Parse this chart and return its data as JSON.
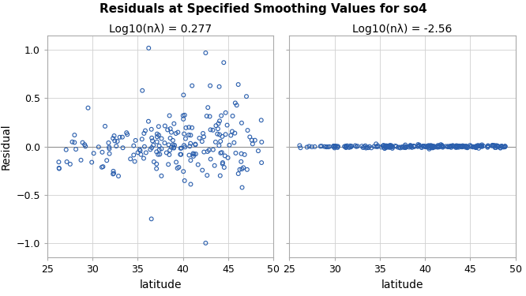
{
  "title": "Residuals at Specified Smoothing Values for so4",
  "subplot1_title": "Log10(nλ) = 0.277",
  "subplot2_title": "Log10(nλ) = -2.56",
  "xlabel": "latitude",
  "ylabel": "Residual",
  "xlim": [
    25,
    50
  ],
  "ylim": [
    -1.15,
    1.15
  ],
  "xticks": [
    25,
    30,
    35,
    40,
    45,
    50
  ],
  "yticks": [
    -1.0,
    -0.5,
    0.0,
    0.5,
    1.0
  ],
  "dot_color": "#2b5fad",
  "dot_facecolor": "none",
  "dot_size": 12,
  "dot_linewidth": 0.8,
  "background_color": "#ffffff",
  "panel_bg": "#ffffff",
  "grid_color": "#d0d0d0",
  "title_fontsize": 11,
  "subtitle_fontsize": 10,
  "axis_label_fontsize": 10,
  "tick_fontsize": 9
}
